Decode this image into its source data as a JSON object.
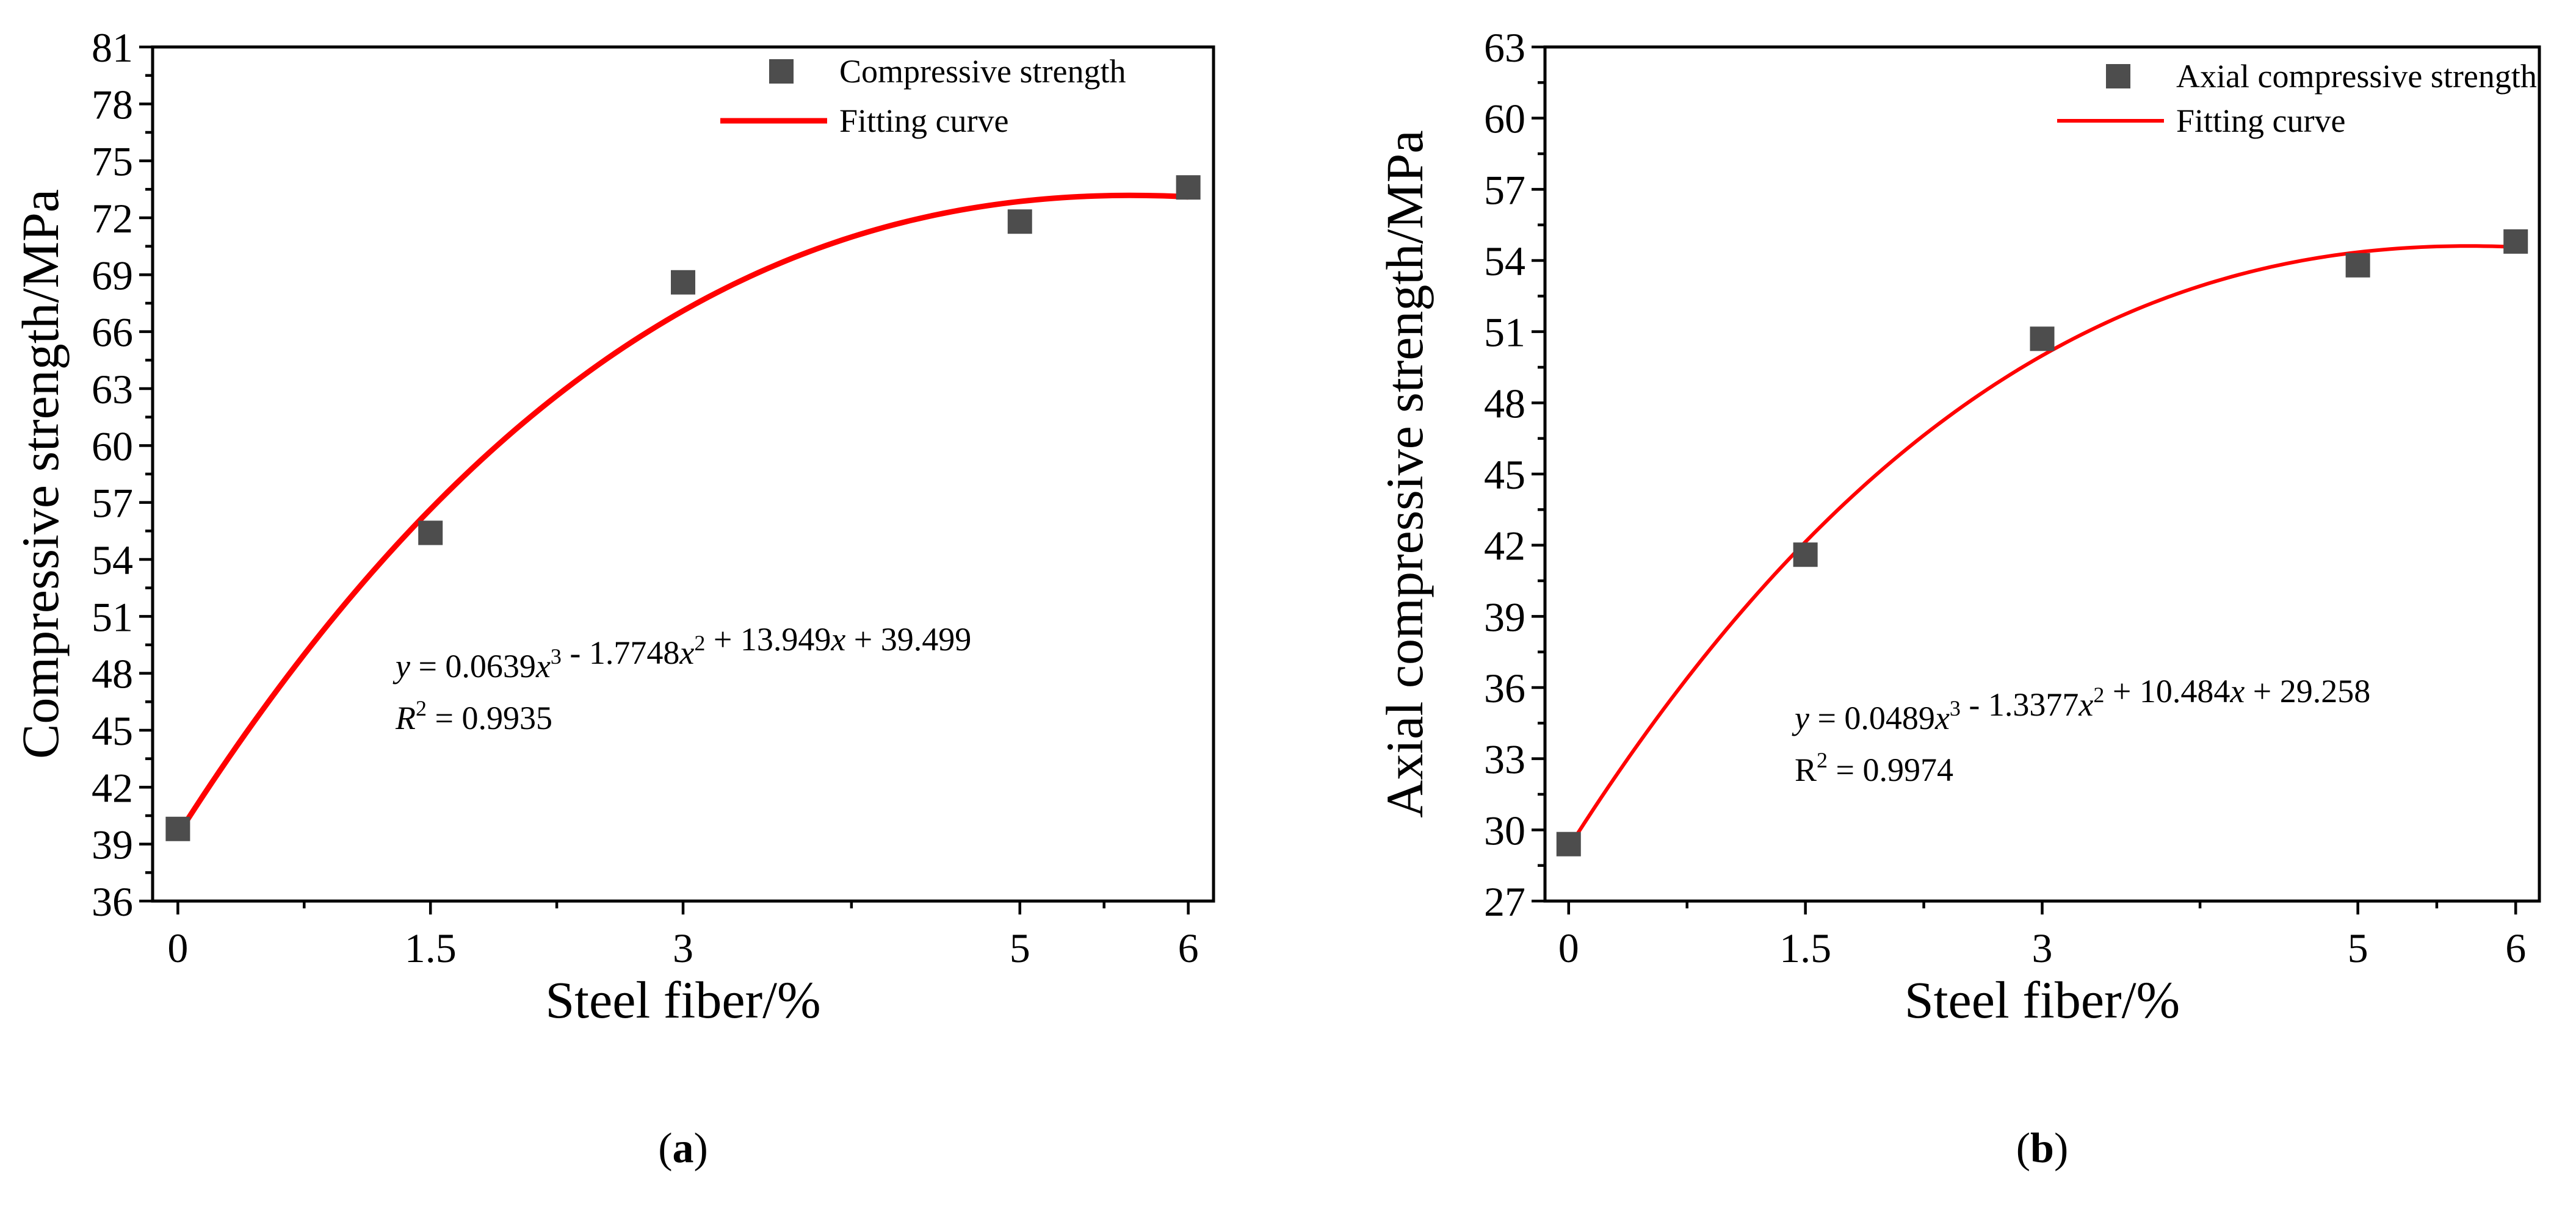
{
  "figure": {
    "panels": [
      "(a)",
      "(b)"
    ]
  },
  "chart_data": [
    {
      "type": "scatter",
      "panel_label": "(a)",
      "panel_open": "(",
      "panel_letter": "a",
      "panel_close": ")",
      "xlabel": "Steel fiber/%",
      "ylabel": "Compressive strength/MPa",
      "x_ticks": [
        "0",
        "1.5",
        "3",
        "5",
        "6"
      ],
      "x_tick_values": [
        0,
        1.5,
        3,
        5,
        6
      ],
      "xlim": [
        -0.15,
        6.15
      ],
      "ylim": [
        36,
        81
      ],
      "y_ticks": [
        "36",
        "39",
        "42",
        "45",
        "48",
        "51",
        "54",
        "57",
        "60",
        "63",
        "66",
        "69",
        "72",
        "75",
        "78",
        "81"
      ],
      "series": [
        {
          "name": "Compressive strength",
          "kind": "scatter",
          "marker": "square",
          "color": "#4d4d4d",
          "x": [
            0,
            1.5,
            3,
            5,
            6
          ],
          "y": [
            39.8,
            55.4,
            68.6,
            71.8,
            73.6
          ]
        },
        {
          "name": "Fitting curve",
          "kind": "line",
          "color": "#ff0000",
          "coefficients": [
            0.0639,
            -1.7748,
            13.949,
            39.499
          ],
          "x_range": [
            0,
            6
          ]
        }
      ],
      "legend": [
        "Compressive strength",
        "Fitting curve"
      ],
      "equation": {
        "y": "y",
        "eq1": " = 0.0639",
        "x1": "x",
        "p3": "3",
        "eq2": " - 1.7748",
        "x2": "x",
        "p2": "2",
        "eq3": " + 13.949",
        "x3": "x",
        "eq4": " + 39.499",
        "r": "R",
        "r_pow": "2",
        "r_val": " = 0.9935"
      }
    },
    {
      "type": "scatter",
      "panel_label": "(b)",
      "panel_open": "(",
      "panel_letter": "b",
      "panel_close": ")",
      "xlabel": "Steel fiber/%",
      "ylabel": "Axial compressive strength/MPa",
      "x_ticks": [
        "0",
        "1.5",
        "3",
        "5",
        "6"
      ],
      "x_tick_values": [
        0,
        1.5,
        3,
        5,
        6
      ],
      "xlim": [
        -0.15,
        6.15
      ],
      "ylim": [
        27,
        63
      ],
      "y_ticks": [
        "27",
        "30",
        "33",
        "36",
        "39",
        "42",
        "45",
        "48",
        "51",
        "54",
        "57",
        "60",
        "63"
      ],
      "series": [
        {
          "name": "Axial compressive strength",
          "kind": "scatter",
          "marker": "square",
          "color": "#4d4d4d",
          "x": [
            0,
            1.5,
            3,
            5,
            6
          ],
          "y": [
            29.4,
            41.6,
            50.7,
            53.8,
            54.8
          ]
        },
        {
          "name": "Fitting curve",
          "kind": "line",
          "color": "#ff0000",
          "coefficients": [
            0.0489,
            -1.3377,
            10.484,
            29.258
          ],
          "x_range": [
            0,
            6
          ]
        }
      ],
      "legend": [
        "Axial compressive strength",
        "Fitting curve"
      ],
      "equation": {
        "y": "y",
        "eq1": " = 0.0489",
        "x1": "x",
        "p3": "3",
        "eq2": " - 1.3377",
        "x2": "x",
        "p2": "2",
        "eq3": " + 10.484",
        "x3": "x",
        "eq4": " + 29.258",
        "r": "R",
        "r_pow": "2",
        "r_val": " = 0.9974"
      }
    }
  ]
}
